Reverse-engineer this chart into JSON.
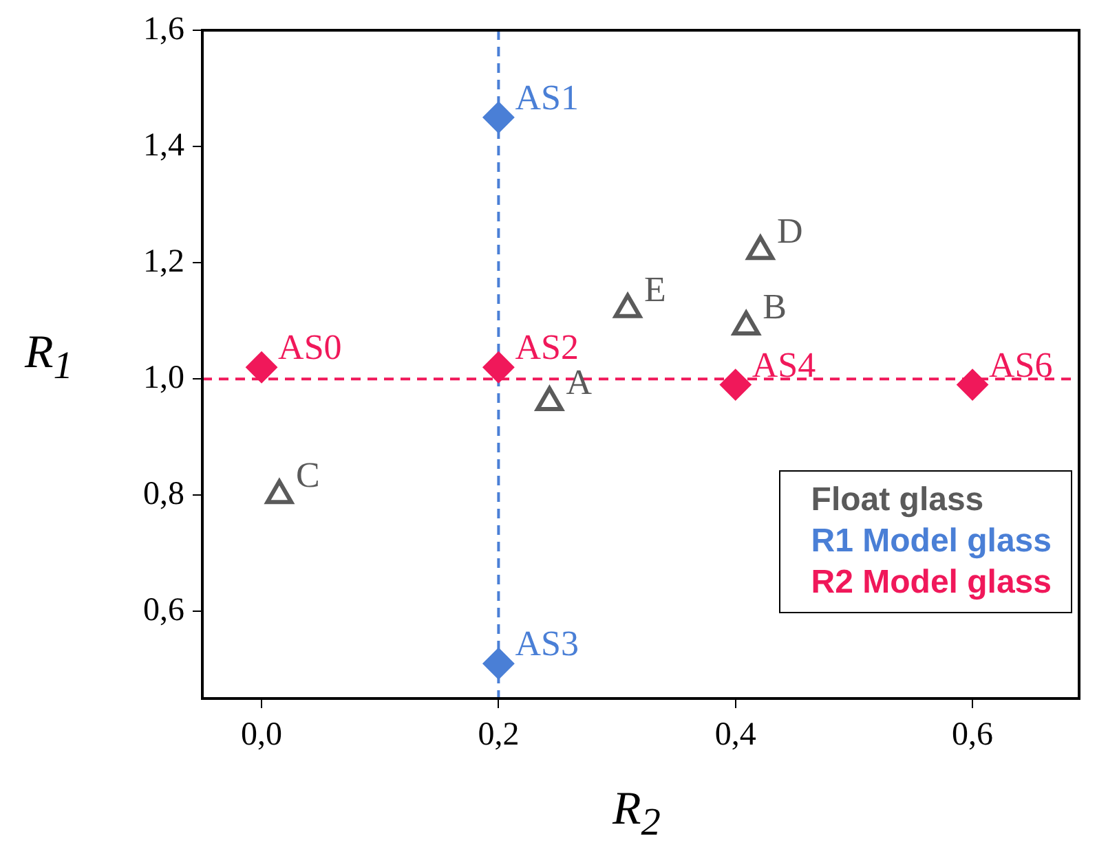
{
  "chart_data": {
    "type": "scatter",
    "xlabel": "R$_{2}$",
    "ylabel": "R$_{1}$",
    "xlim": [
      -0.05,
      0.69
    ],
    "ylim": [
      0.45,
      1.6
    ],
    "xticks": [
      {
        "value": 0,
        "label": "0,0"
      },
      {
        "value": 0.2,
        "label": "0,2"
      },
      {
        "value": 0.4,
        "label": "0,4"
      },
      {
        "value": 0.6,
        "label": "0,6"
      }
    ],
    "yticks": [
      {
        "value": 0.6,
        "label": "0,6"
      },
      {
        "value": 0.8,
        "label": "0,8"
      },
      {
        "value": 1.0,
        "label": "1,0"
      },
      {
        "value": 1.2,
        "label": "1,2"
      },
      {
        "value": 1.4,
        "label": "1,4"
      },
      {
        "value": 1.6,
        "label": "1,6"
      }
    ],
    "grid": false,
    "legend": "bottom right",
    "series": [
      {
        "name": "Float glass",
        "color": "#5a5a5a",
        "marker": "triangle",
        "x": [
          0.243,
          0.409,
          0.015,
          0.421,
          0.309
        ],
        "values": [
          0.96,
          1.09,
          0.8,
          1.22,
          1.12
        ]
      },
      {
        "name": "R1 Model glass",
        "color": "#4a7fd6",
        "marker": "diamond",
        "x": [
          0.2,
          0.2
        ],
        "values": [
          1.45,
          0.51
        ]
      },
      {
        "name": "R2 Model glass",
        "color": "#f0185a",
        "marker": "diamond",
        "x": [
          0,
          0.2,
          0.4,
          0.6
        ],
        "values": [
          1.02,
          1.02,
          0.99,
          0.99
        ]
      }
    ],
    "ref_lines": [
      {
        "axis": "y",
        "value": 1.0,
        "color": "#f0185a",
        "line_style": "dashed"
      },
      {
        "axis": "x",
        "value": 0.2,
        "color": "#4a7fd6",
        "line_style": "dashed"
      }
    ],
    "annotations": [
      {
        "text": "A",
        "x": 0.243,
        "y": 0.96
      },
      {
        "text": "B",
        "x": 0.409,
        "y": 1.09
      },
      {
        "text": "C",
        "x": 0.015,
        "y": 0.8
      },
      {
        "text": "D",
        "x": 0.421,
        "y": 1.22
      },
      {
        "text": "E",
        "x": 0.309,
        "y": 1.12
      },
      {
        "text": "AS1",
        "x": 0.2,
        "y": 1.45
      },
      {
        "text": "AS3",
        "x": 0.2,
        "y": 0.51
      },
      {
        "text": "AS0",
        "x": 0,
        "y": 1.02
      },
      {
        "text": "AS2",
        "x": 0.2,
        "y": 1.02
      },
      {
        "text": "AS4",
        "x": 0.4,
        "y": 0.99
      },
      {
        "text": "AS6",
        "x": 0.6,
        "y": 0.99
      }
    ]
  }
}
